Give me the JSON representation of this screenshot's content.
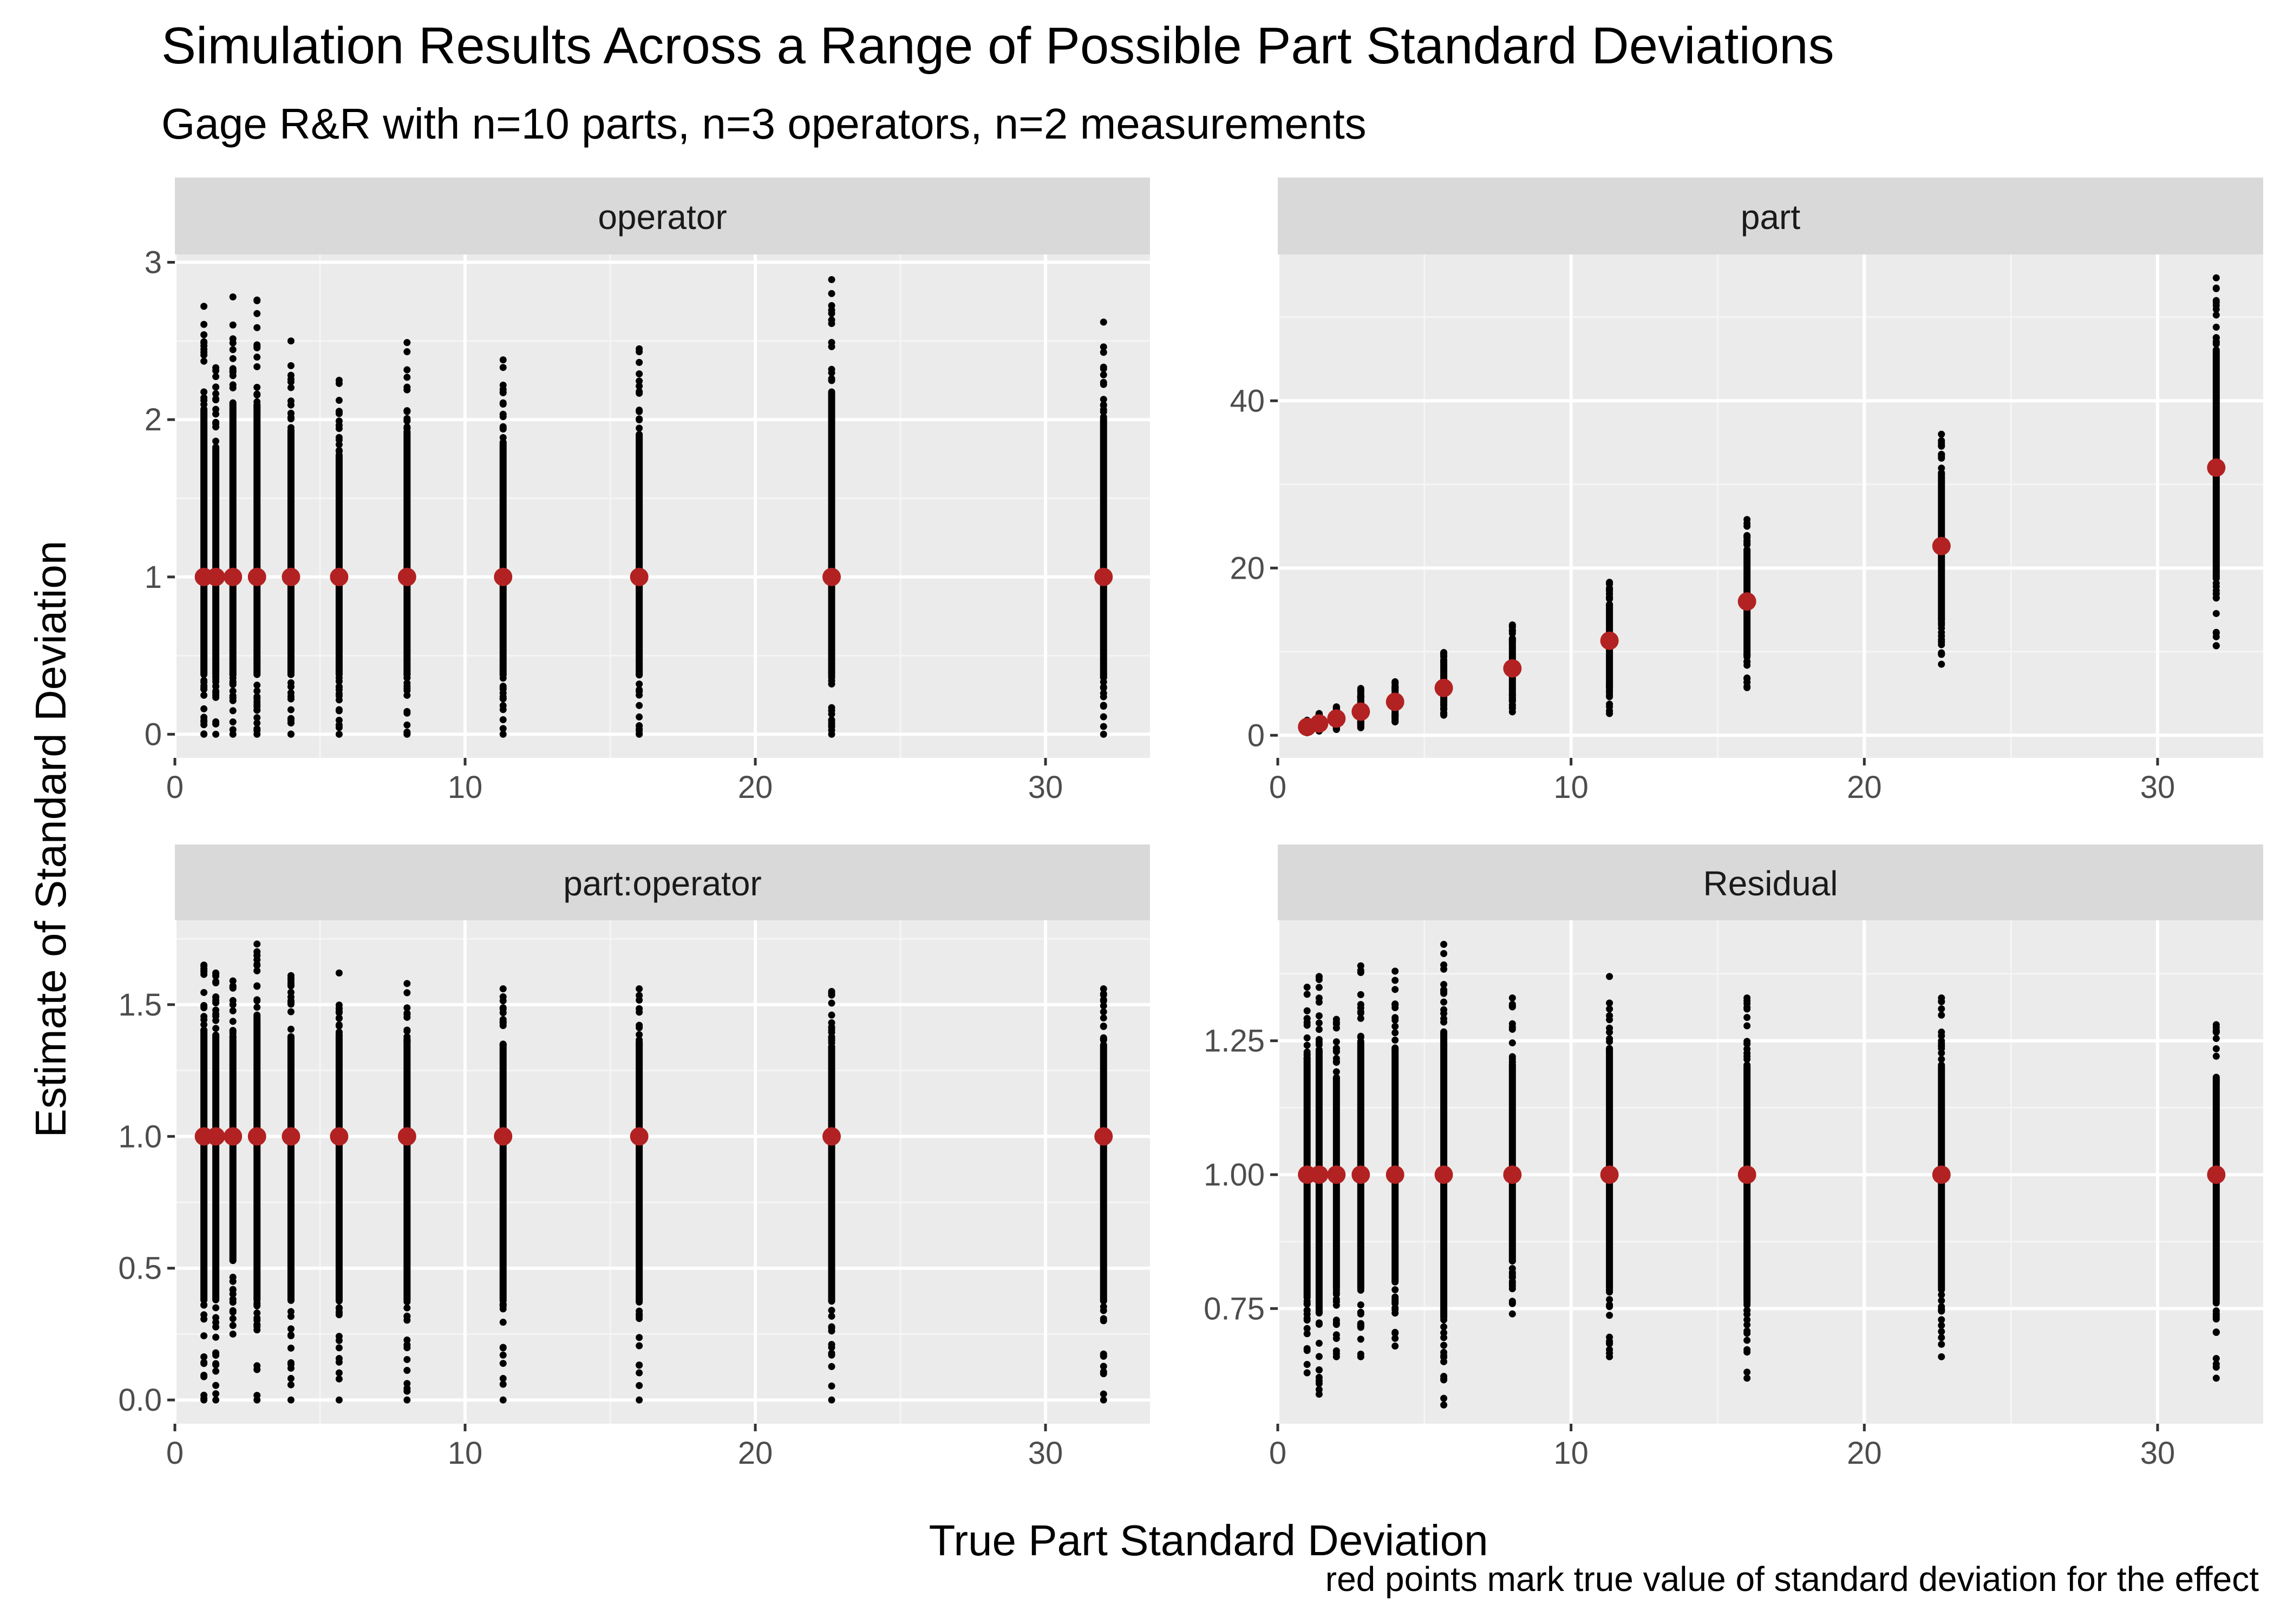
{
  "title": "Simulation Results Across a Range of Possible Part Standard Deviations",
  "subtitle": "Gage R&R with n=10 parts, n=3 operators, n=2 measurements",
  "xlabel": "True Part Standard Deviation",
  "ylabel": "Estimate of Standard Deviation",
  "caption": "red points mark true value of standard deviation for the effect",
  "colors": {
    "panel_bg": "#EBEBEB",
    "strip_bg": "#D9D9D9",
    "grid_major": "#FFFFFF",
    "sim_point": "#000000",
    "true_point": "#B22222",
    "axis_text": "#4D4D4D"
  },
  "chart_data": [
    {
      "type": "scatter",
      "facet": "operator",
      "x_ticks": [
        "0",
        "10",
        "20",
        "30"
      ],
      "y_ticks": [
        "0",
        "1",
        "2",
        "3"
      ],
      "xlim": [
        0,
        33.6
      ],
      "ylim": [
        -0.15,
        3.05
      ],
      "true_points": {
        "x": [
          1,
          1.41,
          2,
          2.83,
          4,
          5.66,
          8,
          11.31,
          16,
          22.63,
          32
        ],
        "y": [
          1,
          1,
          1,
          1,
          1,
          1,
          1,
          1,
          1,
          1,
          1
        ]
      },
      "sim_ranges": [
        {
          "x": 1,
          "min": 0,
          "max": 2.72
        },
        {
          "x": 1.41,
          "min": 0,
          "max": 2.33
        },
        {
          "x": 2,
          "min": 0,
          "max": 2.78
        },
        {
          "x": 2.83,
          "min": 0,
          "max": 2.76
        },
        {
          "x": 4,
          "min": 0,
          "max": 2.5
        },
        {
          "x": 5.66,
          "min": 0,
          "max": 2.25
        },
        {
          "x": 8,
          "min": 0,
          "max": 2.49
        },
        {
          "x": 11.31,
          "min": 0,
          "max": 2.38
        },
        {
          "x": 16,
          "min": 0,
          "max": 2.45
        },
        {
          "x": 22.63,
          "min": 0,
          "max": 2.89
        },
        {
          "x": 32,
          "min": 0,
          "max": 2.62
        }
      ]
    },
    {
      "type": "scatter",
      "facet": "part",
      "x_ticks": [
        "0",
        "10",
        "20",
        "30"
      ],
      "y_ticks": [
        "0",
        "20",
        "40"
      ],
      "xlim": [
        0,
        33.6
      ],
      "ylim": [
        -2.7,
        57.5
      ],
      "true_points": {
        "x": [
          1,
          1.41,
          2,
          2.83,
          4,
          5.66,
          8,
          11.31,
          16,
          22.63,
          32
        ],
        "y": [
          1,
          1.41,
          2,
          2.83,
          4,
          5.66,
          8,
          11.31,
          16,
          22.63,
          32
        ]
      },
      "sim_ranges": [
        {
          "x": 1,
          "min": 0.3,
          "max": 1.8
        },
        {
          "x": 1.41,
          "min": 0.5,
          "max": 2.6
        },
        {
          "x": 2,
          "min": 0.7,
          "max": 3.4
        },
        {
          "x": 2.83,
          "min": 0.9,
          "max": 5.6
        },
        {
          "x": 4,
          "min": 1.6,
          "max": 6.4
        },
        {
          "x": 5.66,
          "min": 2.4,
          "max": 9.9
        },
        {
          "x": 8,
          "min": 2.8,
          "max": 13.2
        },
        {
          "x": 11.31,
          "min": 2.6,
          "max": 18.3
        },
        {
          "x": 16,
          "min": 5.7,
          "max": 25.8
        },
        {
          "x": 22.63,
          "min": 8.5,
          "max": 36.0
        },
        {
          "x": 32,
          "min": 10.7,
          "max": 54.7
        }
      ]
    },
    {
      "type": "scatter",
      "facet": "part:operator",
      "x_ticks": [
        "0",
        "10",
        "20",
        "30"
      ],
      "y_ticks": [
        "0.0",
        "0.5",
        "1.0",
        "1.5"
      ],
      "xlim": [
        0,
        33.6
      ],
      "ylim": [
        -0.09,
        1.82
      ],
      "true_points": {
        "x": [
          1,
          1.41,
          2,
          2.83,
          4,
          5.66,
          8,
          11.31,
          16,
          22.63,
          32
        ],
        "y": [
          1,
          1,
          1,
          1,
          1,
          1,
          1,
          1,
          1,
          1,
          1
        ]
      },
      "sim_ranges": [
        {
          "x": 1,
          "min": 0,
          "max": 1.65
        },
        {
          "x": 1.41,
          "min": 0,
          "max": 1.62
        },
        {
          "x": 2,
          "min": 0.25,
          "max": 1.59
        },
        {
          "x": 2.83,
          "min": 0,
          "max": 1.73
        },
        {
          "x": 4,
          "min": 0,
          "max": 1.61
        },
        {
          "x": 5.66,
          "min": 0,
          "max": 1.62
        },
        {
          "x": 8,
          "min": 0,
          "max": 1.58
        },
        {
          "x": 11.31,
          "min": 0,
          "max": 1.56
        },
        {
          "x": 16,
          "min": 0,
          "max": 1.56
        },
        {
          "x": 22.63,
          "min": 0,
          "max": 1.55
        },
        {
          "x": 32,
          "min": 0,
          "max": 1.56
        }
      ]
    },
    {
      "type": "scatter",
      "facet": "Residual",
      "x_ticks": [
        "0",
        "10",
        "20",
        "30"
      ],
      "y_ticks": [
        "0.75",
        "1.00",
        "1.25"
      ],
      "xlim": [
        0,
        33.6
      ],
      "ylim": [
        0.535,
        1.475
      ],
      "true_points": {
        "x": [
          1,
          1.41,
          2,
          2.83,
          4,
          5.66,
          8,
          11.31,
          16,
          22.63,
          32
        ],
        "y": [
          1,
          1,
          1,
          1,
          1,
          1,
          1,
          1,
          1,
          1,
          1
        ]
      },
      "sim_ranges": [
        {
          "x": 1,
          "min": 0.63,
          "max": 1.35
        },
        {
          "x": 1.41,
          "min": 0.59,
          "max": 1.37
        },
        {
          "x": 2,
          "min": 0.66,
          "max": 1.29
        },
        {
          "x": 2.83,
          "min": 0.66,
          "max": 1.39
        },
        {
          "x": 4,
          "min": 0.68,
          "max": 1.38
        },
        {
          "x": 5.66,
          "min": 0.57,
          "max": 1.43
        },
        {
          "x": 8,
          "min": 0.74,
          "max": 1.33
        },
        {
          "x": 11.31,
          "min": 0.66,
          "max": 1.37
        },
        {
          "x": 16,
          "min": 0.62,
          "max": 1.33
        },
        {
          "x": 22.63,
          "min": 0.66,
          "max": 1.33
        },
        {
          "x": 32,
          "min": 0.62,
          "max": 1.28
        }
      ]
    }
  ]
}
